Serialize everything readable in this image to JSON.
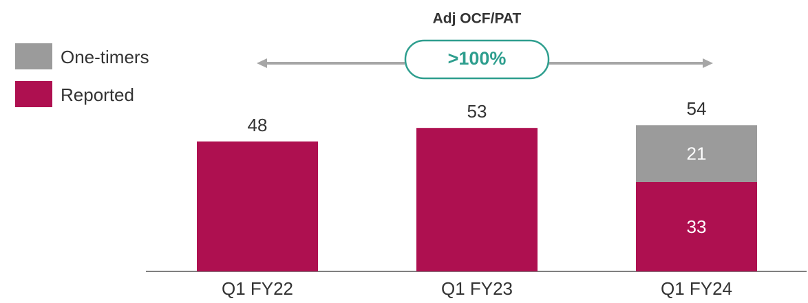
{
  "chart_data": {
    "type": "stacked_bar",
    "categories": [
      "Q1 FY22",
      "Q1 FY23",
      "Q1 FY24"
    ],
    "series": [
      {
        "name": "Reported",
        "color": "#ae1050",
        "values": [
          48,
          53,
          33
        ]
      },
      {
        "name": "One-timers",
        "color": "#9b9b9b",
        "values": [
          null,
          null,
          21
        ]
      }
    ],
    "totals": [
      48,
      53,
      54
    ],
    "ylim": [
      0,
      100
    ],
    "annotation": {
      "title": "Adj OCF/PAT",
      "label": ">100%",
      "color": "#2e9e8e"
    }
  }
}
